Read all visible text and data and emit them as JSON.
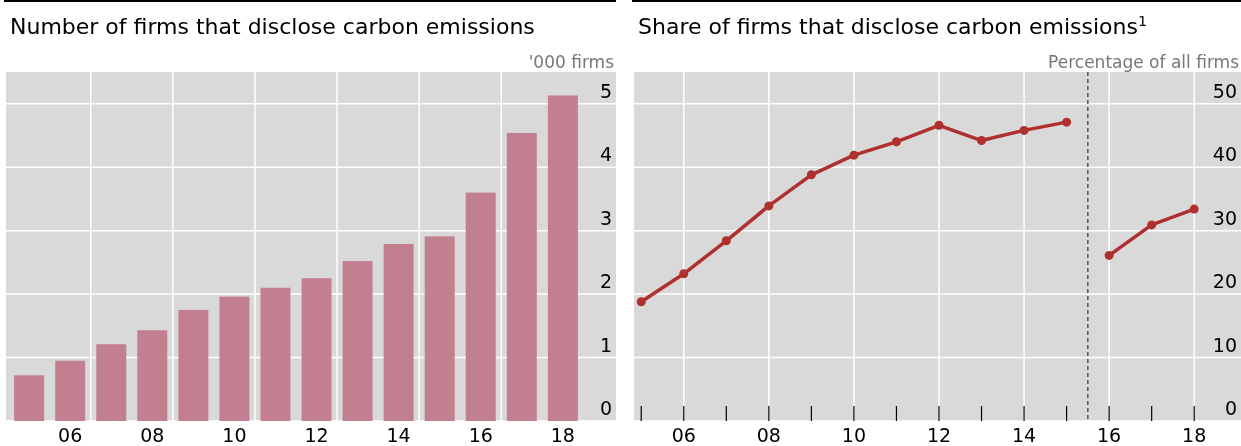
{
  "chart_data": [
    {
      "type": "bar",
      "title": "Number of firms that disclose carbon emissions",
      "ylabel": "'000 firms",
      "categories": [
        null,
        "06",
        null,
        "08",
        null,
        "10",
        null,
        "12",
        null,
        "14",
        null,
        "16",
        null,
        "18"
      ],
      "values": [
        0.72,
        0.95,
        1.21,
        1.43,
        1.75,
        1.96,
        2.1,
        2.25,
        2.52,
        2.79,
        2.91,
        3.6,
        4.54,
        5.13
      ],
      "color": "#c27f8f",
      "ylim": [
        0,
        5.5
      ],
      "yticks": [
        0,
        1,
        2,
        3,
        4,
        5
      ],
      "grid": true
    },
    {
      "type": "line",
      "title": "Share of firms that disclose carbon emissions$^{1}$",
      "ylabel": "Percentage of all firms",
      "series": [
        {
          "color": "#b03030",
          "x": [
            2005,
            2006,
            2007,
            2008,
            2009,
            2010,
            2011,
            2012,
            2013,
            2014,
            2015
          ],
          "values": [
            18.8,
            23.2,
            28.4,
            33.9,
            38.8,
            41.9,
            44.0,
            46.6,
            44.2,
            45.8,
            47.1
          ]
        },
        {
          "color": "#b03030",
          "x": [
            2016,
            2017,
            2018
          ],
          "values": [
            26.1,
            30.9,
            33.4
          ]
        }
      ],
      "marker": "circle",
      "xlim": [
        2004.83,
        2019.1
      ],
      "xticks": [
        {
          "value": 2005,
          "label": null
        },
        {
          "value": 2006,
          "label": "06"
        },
        {
          "value": 2007,
          "label": null
        },
        {
          "value": 2008,
          "label": "08"
        },
        {
          "value": 2009,
          "label": null
        },
        {
          "value": 2010,
          "label": "10"
        },
        {
          "value": 2011,
          "label": null
        },
        {
          "value": 2012,
          "label": "12"
        },
        {
          "value": 2013,
          "label": null
        },
        {
          "value": 2014,
          "label": "14"
        },
        {
          "value": 2015,
          "label": null
        },
        {
          "value": 2016,
          "label": "16"
        },
        {
          "value": 2017,
          "label": null
        },
        {
          "value": 2018,
          "label": "18"
        }
      ],
      "ylim": [
        0,
        55
      ],
      "yticks": [
        0,
        10,
        20,
        30,
        40,
        50
      ],
      "grid": true,
      "ref_lines": [
        {
          "axis": "x",
          "value": 2015.5,
          "line_style": "dashed",
          "color": "#333333"
        }
      ]
    }
  ]
}
